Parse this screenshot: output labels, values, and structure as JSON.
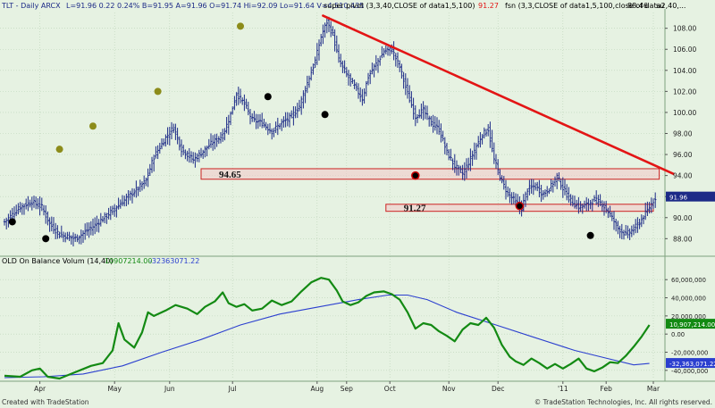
{
  "header": {
    "symbol": "TLT - Daily  ARCX",
    "stats": "L=91.96  0.22  0.24%  B=91.95  A=91.96  O=91.74  Hi=92.09  Lo=91.64  V=4,510,435",
    "study1_label": "super pivot (3,3,40,CLOSE of data1,5,100)",
    "study1_value": "91.27",
    "study2_label": "fsn (3,3,CLOSE of data1,5,100,close of data2,40,...",
    "study2_value": "88.46",
    "study2_tail": "su"
  },
  "lower_header": {
    "label": "OLD  On Balance Volum (14,40)",
    "value1": "10907214.00",
    "value2": "-32363071.22"
  },
  "footer": {
    "left": "Created with TradeStation",
    "right": "© TradeStation Technologies, Inc. All rights reserved."
  },
  "colors": {
    "background": "#e6f2e2",
    "bars": "#1c2a87",
    "trendline": "#e31515",
    "obv": "#138a13",
    "obv_avg": "#2b3fcf",
    "pivot_olive": "#8c8c1a",
    "pivot_black": "#000000",
    "zone": "#cc2222"
  },
  "chart_data": [
    {
      "type": "ohlc",
      "title": "TLT - Daily ARCX",
      "x_ticks": [
        "Apr",
        "May",
        "Jun",
        "Jul",
        "Aug",
        "Sep",
        "Oct",
        "Nov",
        "Dec",
        "'11",
        "Feb",
        "Mar"
      ],
      "y_ticks": [
        "88.00",
        "90.00",
        "92.00",
        "94.00",
        "96.00",
        "98.00",
        "100.00",
        "102.00",
        "104.00",
        "106.00",
        "108.00"
      ],
      "ylim": [
        86.5,
        109.5
      ],
      "last_price": "91.96",
      "price_path": [
        [
          0,
          89.6
        ],
        [
          8,
          91.0
        ],
        [
          14,
          91.5
        ],
        [
          19,
          91.0
        ],
        [
          23,
          89.4
        ],
        [
          28,
          88.4
        ],
        [
          36,
          88.0
        ],
        [
          44,
          89.0
        ],
        [
          52,
          90.2
        ],
        [
          60,
          91.5
        ],
        [
          68,
          92.8
        ],
        [
          72,
          93.5
        ],
        [
          76,
          95.8
        ],
        [
          82,
          97.6
        ],
        [
          86,
          98.6
        ],
        [
          90,
          96.5
        ],
        [
          96,
          95.5
        ],
        [
          101,
          96.3
        ],
        [
          106,
          97.2
        ],
        [
          111,
          97.8
        ],
        [
          115,
          99.8
        ],
        [
          118,
          101.8
        ],
        [
          122,
          100.8
        ],
        [
          126,
          99.3
        ],
        [
          131,
          99.0
        ],
        [
          136,
          98.2
        ],
        [
          141,
          99.0
        ],
        [
          146,
          99.6
        ],
        [
          150,
          100.6
        ],
        [
          154,
          102.8
        ],
        [
          158,
          104.9
        ],
        [
          161,
          107.2
        ],
        [
          164,
          108.6
        ],
        [
          167,
          107.4
        ],
        [
          170,
          105.0
        ],
        [
          174,
          103.6
        ],
        [
          178,
          102.5
        ],
        [
          182,
          101.3
        ],
        [
          185,
          103.4
        ],
        [
          189,
          104.6
        ],
        [
          193,
          105.8
        ],
        [
          197,
          106.0
        ],
        [
          201,
          104.3
        ],
        [
          205,
          101.8
        ],
        [
          209,
          99.6
        ],
        [
          213,
          100.2
        ],
        [
          217,
          99.0
        ],
        [
          221,
          98.4
        ],
        [
          225,
          96.2
        ],
        [
          229,
          94.9
        ],
        [
          233,
          94.2
        ],
        [
          236,
          95.2
        ],
        [
          240,
          96.8
        ],
        [
          243,
          97.9
        ],
        [
          246,
          98.4
        ],
        [
          249,
          95.5
        ],
        [
          253,
          93.4
        ],
        [
          256,
          92.3
        ],
        [
          260,
          91.5
        ],
        [
          263,
          90.9
        ],
        [
          266,
          92.7
        ],
        [
          270,
          93.0
        ],
        [
          274,
          92.2
        ],
        [
          278,
          93.0
        ],
        [
          281,
          93.9
        ],
        [
          284,
          92.8
        ],
        [
          288,
          91.6
        ],
        [
          292,
          91.0
        ],
        [
          296,
          91.2
        ],
        [
          300,
          91.7
        ],
        [
          304,
          91.3
        ],
        [
          308,
          90.3
        ],
        [
          312,
          89.0
        ],
        [
          316,
          88.4
        ],
        [
          320,
          88.9
        ],
        [
          324,
          89.8
        ],
        [
          328,
          91.0
        ],
        [
          331,
          91.9
        ]
      ],
      "annotations": [
        {
          "label": "94.65",
          "y_low": 93.65,
          "y_high": 94.65
        },
        {
          "label": "91.27",
          "y_low": 90.6,
          "y_high": 91.27
        }
      ],
      "trendline": {
        "from": [
          162,
          109.2
        ],
        "to": [
          332,
          94.5
        ]
      },
      "pivot_highs": [
        [
          28,
          96.5
        ],
        [
          45,
          98.7
        ],
        [
          78,
          102.0
        ],
        [
          120,
          108.2
        ]
      ],
      "pivot_lows": [
        [
          4,
          89.6
        ],
        [
          21,
          88.0
        ],
        [
          134,
          101.5
        ],
        [
          163,
          99.8
        ],
        [
          209,
          94.0
        ],
        [
          262,
          91.1
        ],
        [
          298,
          88.3
        ]
      ]
    },
    {
      "type": "line",
      "title": "OLD On Balance Volum (14,40)",
      "y_ticks": [
        "-40,000,000",
        "-20,000,000",
        "0.00",
        "20,000,000",
        "40,000,000",
        "60,000,000"
      ],
      "ylim": [
        -50000000,
        74000000
      ],
      "series": [
        {
          "name": "",
          "values": [
            [
              0,
              -46
            ],
            [
              8,
              -47
            ],
            [
              14,
              -40
            ],
            [
              18,
              -38
            ],
            [
              22,
              -47
            ],
            [
              28,
              -49
            ],
            [
              36,
              -42
            ],
            [
              44,
              -35
            ],
            [
              50,
              -32
            ],
            [
              55,
              -18
            ],
            [
              58,
              12
            ],
            [
              61,
              -6
            ],
            [
              66,
              -15
            ],
            [
              70,
              2
            ],
            [
              73,
              24
            ],
            [
              76,
              20
            ],
            [
              82,
              26
            ],
            [
              87,
              32
            ],
            [
              93,
              28
            ],
            [
              98,
              22
            ],
            [
              102,
              30
            ],
            [
              107,
              36
            ],
            [
              111,
              46
            ],
            [
              114,
              34
            ],
            [
              118,
              30
            ],
            [
              122,
              33
            ],
            [
              126,
              26
            ],
            [
              131,
              28
            ],
            [
              136,
              37
            ],
            [
              141,
              32
            ],
            [
              146,
              36
            ],
            [
              151,
              47
            ],
            [
              156,
              57
            ],
            [
              161,
              62
            ],
            [
              165,
              60
            ],
            [
              169,
              48
            ],
            [
              172,
              36
            ],
            [
              176,
              32
            ],
            [
              180,
              35
            ],
            [
              184,
              42
            ],
            [
              188,
              46
            ],
            [
              193,
              47
            ],
            [
              197,
              44
            ],
            [
              201,
              38
            ],
            [
              205,
              24
            ],
            [
              209,
              6
            ],
            [
              213,
              12
            ],
            [
              217,
              10
            ],
            [
              221,
              3
            ],
            [
              225,
              -2
            ],
            [
              229,
              -8
            ],
            [
              233,
              5
            ],
            [
              237,
              12
            ],
            [
              241,
              10
            ],
            [
              245,
              18
            ],
            [
              249,
              7
            ],
            [
              253,
              -12
            ],
            [
              257,
              -25
            ],
            [
              260,
              -30
            ],
            [
              264,
              -34
            ],
            [
              268,
              -27
            ],
            [
              272,
              -32
            ],
            [
              276,
              -38
            ],
            [
              280,
              -33
            ],
            [
              284,
              -38
            ],
            [
              288,
              -33
            ],
            [
              292,
              -27
            ],
            [
              296,
              -38
            ],
            [
              300,
              -41
            ],
            [
              304,
              -37
            ],
            [
              308,
              -31
            ],
            [
              312,
              -32
            ],
            [
              316,
              -24
            ],
            [
              320,
              -14
            ],
            [
              324,
              -3
            ],
            [
              328,
              10
            ]
          ],
          "last": "10,907,214.00"
        },
        {
          "name": "",
          "values": [
            [
              0,
              -48
            ],
            [
              20,
              -47
            ],
            [
              40,
              -44
            ],
            [
              60,
              -35
            ],
            [
              80,
              -20
            ],
            [
              100,
              -6
            ],
            [
              120,
              10
            ],
            [
              140,
              22
            ],
            [
              160,
              30
            ],
            [
              180,
              38
            ],
            [
              195,
              43
            ],
            [
              205,
              43
            ],
            [
              215,
              38
            ],
            [
              230,
              24
            ],
            [
              250,
              10
            ],
            [
              270,
              -4
            ],
            [
              290,
              -18
            ],
            [
              305,
              -26
            ],
            [
              320,
              -34
            ],
            [
              328,
              -32.4
            ]
          ],
          "last": "-32,363,071.22"
        }
      ]
    }
  ]
}
